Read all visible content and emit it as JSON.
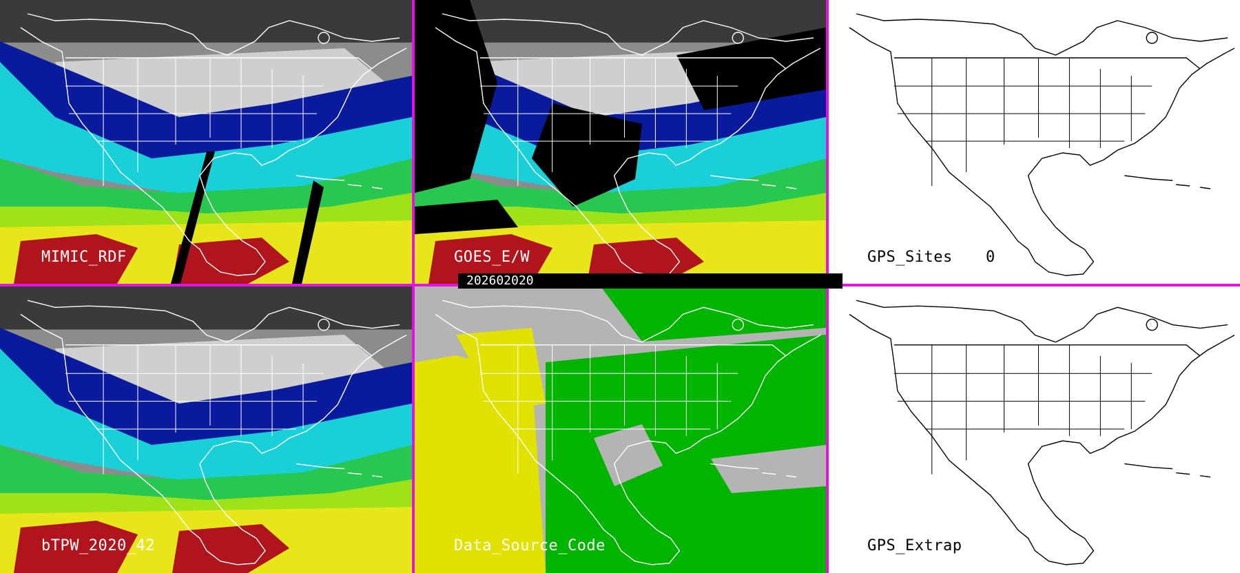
{
  "timestamp": "202602020",
  "panels": [
    {
      "id": "mimic",
      "label": "MIMIC_RDF",
      "style": "moisture"
    },
    {
      "id": "goes",
      "label": "GOES_E/W",
      "style": "moisture-masked"
    },
    {
      "id": "gps-sites",
      "label": "GPS_Sites",
      "value": "0",
      "style": "outline"
    },
    {
      "id": "btpw",
      "label": "bTPW_2020_42",
      "style": "moisture"
    },
    {
      "id": "data-source",
      "label": "Data_Source_Code",
      "style": "source"
    },
    {
      "id": "gps-extrap",
      "label": "GPS_Extrap",
      "style": "outline"
    }
  ],
  "colors": {
    "divider": "#e414e0",
    "moisture_scale": [
      "#3a3a3a",
      "#8c8c8c",
      "#cfcfcf",
      "#0a1a9c",
      "#1c4fd8",
      "#19d0d8",
      "#28c850",
      "#9fe21a",
      "#e6e61a",
      "#c9b800",
      "#b0141c"
    ],
    "source_gray": "#b4b4b4",
    "source_yellow": "#e2e200",
    "source_green": "#00b400"
  }
}
